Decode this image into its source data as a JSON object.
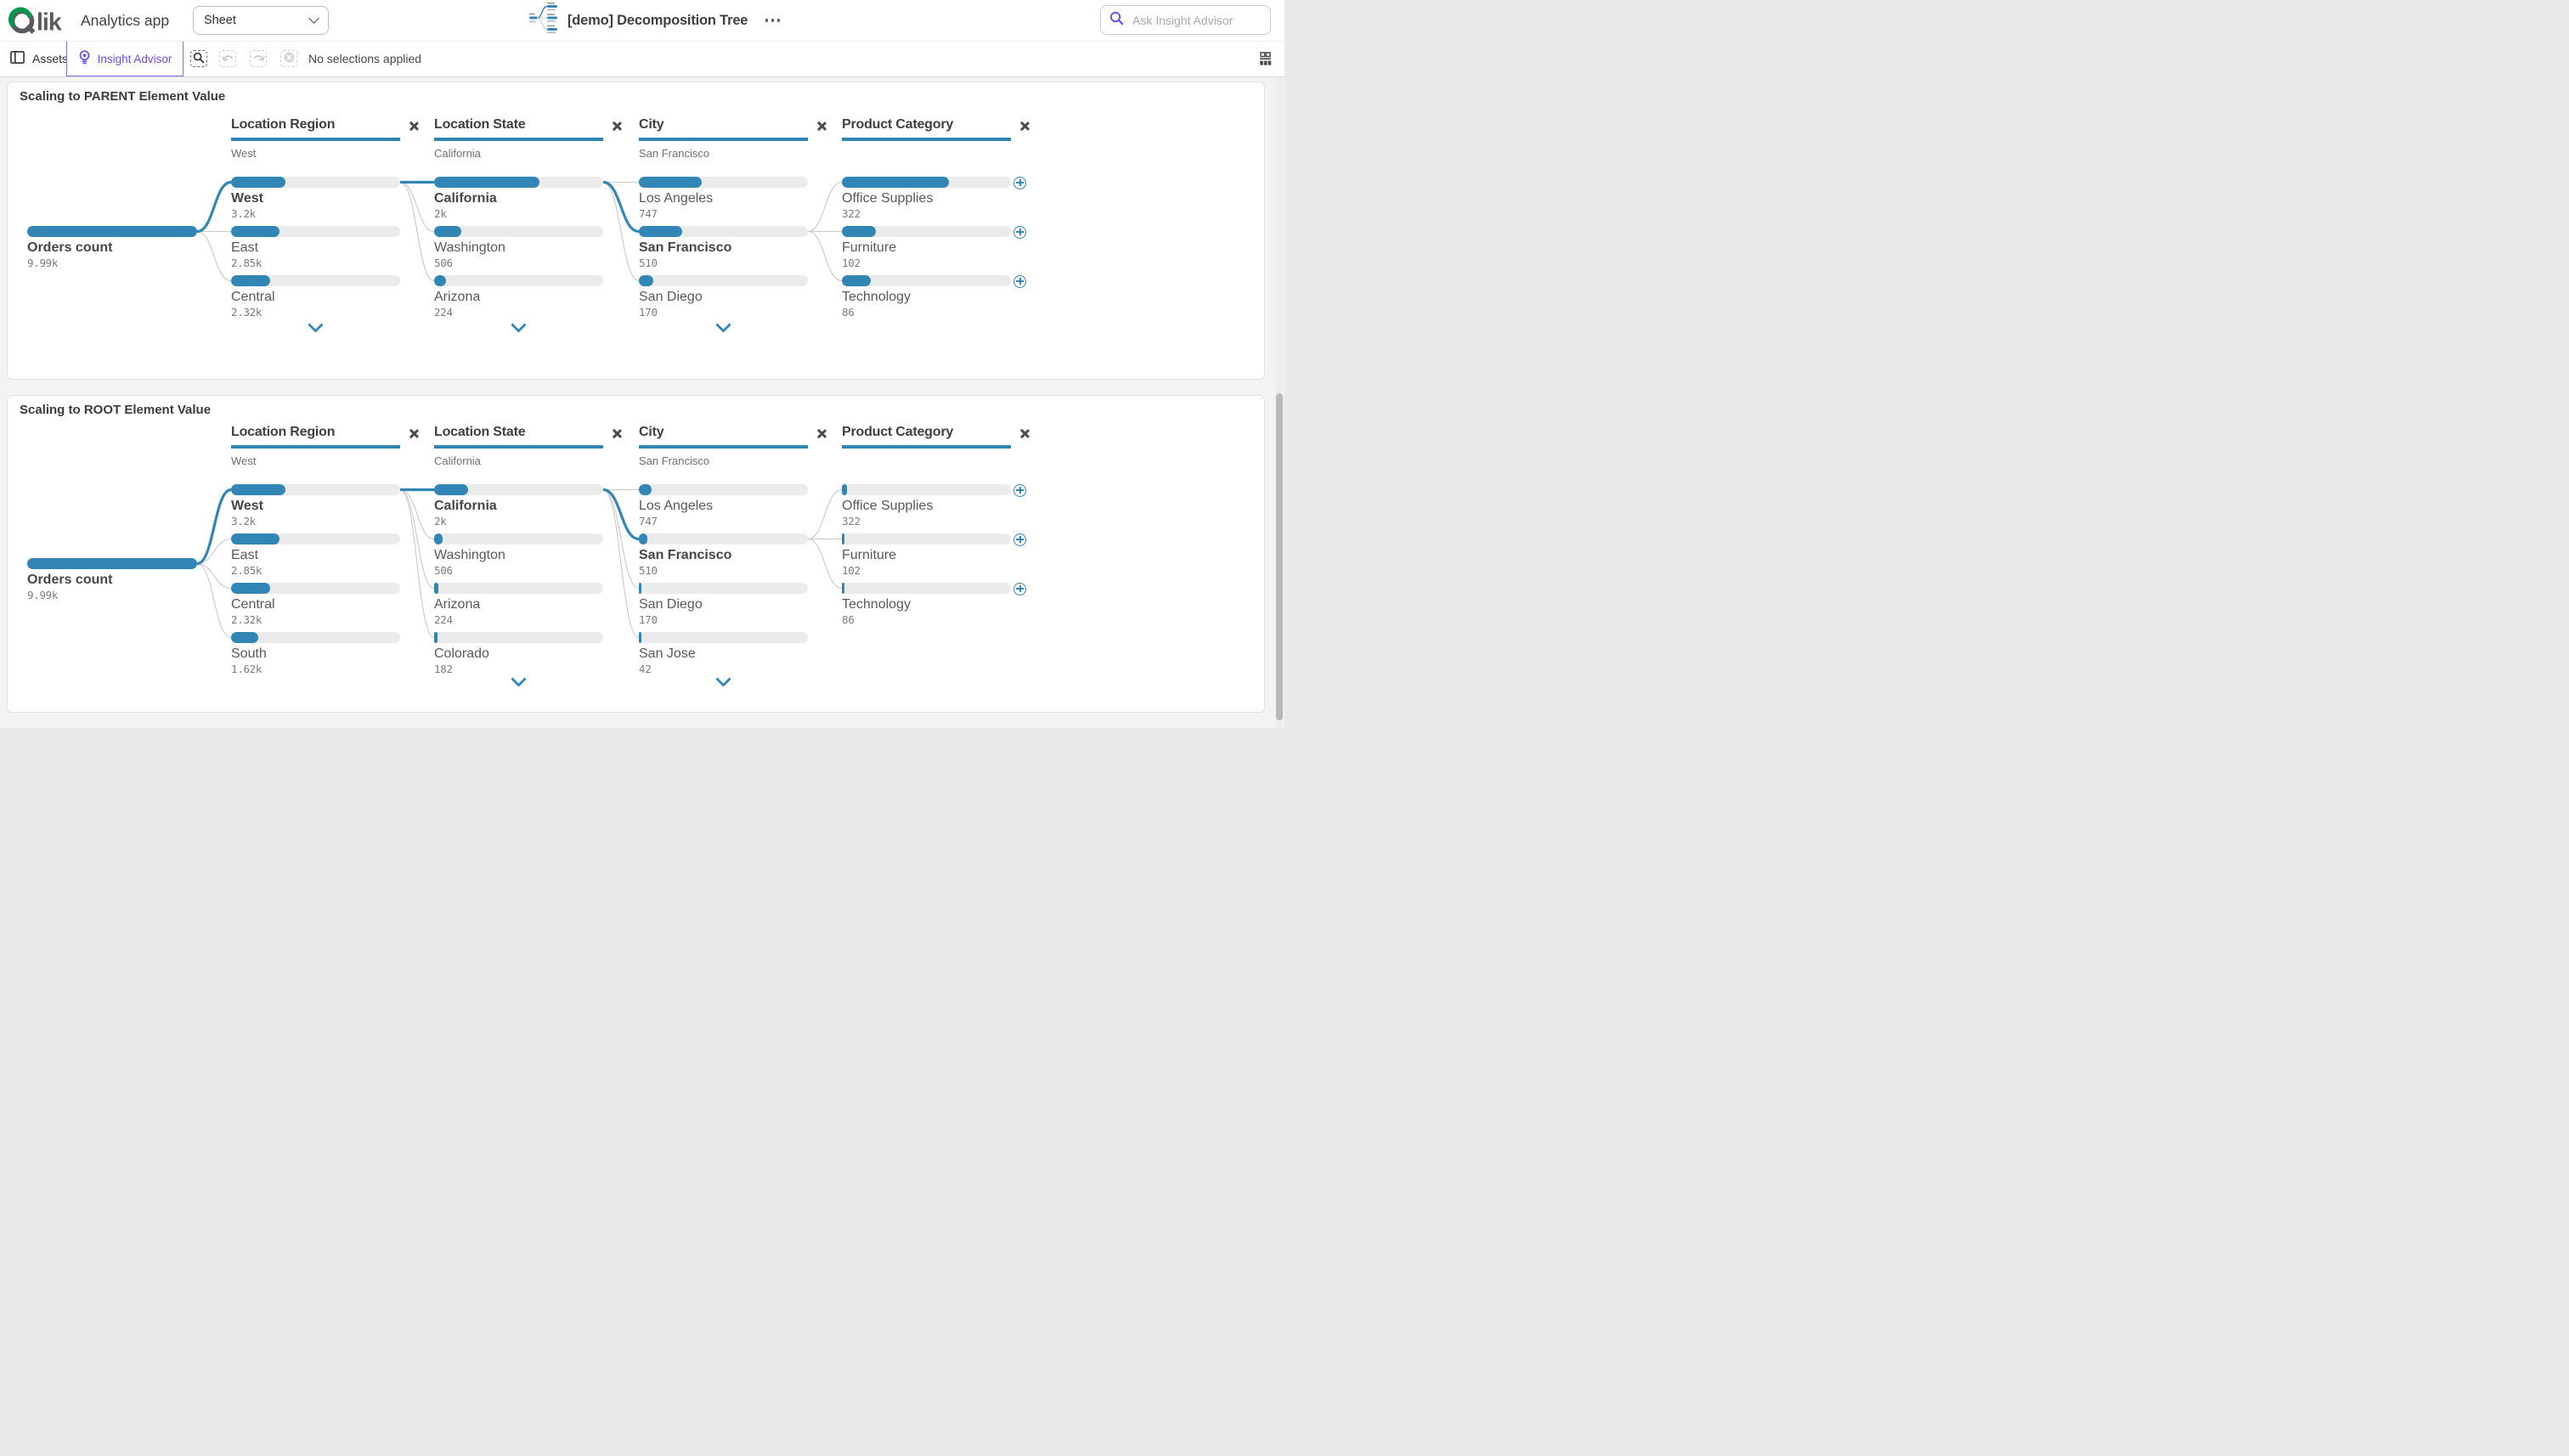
{
  "topbar": {
    "brand": "Qlik",
    "app_title": "Analytics app",
    "sheet_selector_label": "Sheet",
    "document_title": "[demo] Decomposition Tree",
    "search_placeholder": "Ask Insight Advisor"
  },
  "toolbar": {
    "assets_label": "Assets",
    "insight_advisor_label": "Insight Advisor",
    "selections_status": "No selections applied"
  },
  "colors": {
    "accent_blue": "#3186b5",
    "accent_purple": "#654ff0",
    "bar_track_gray": "#ebebeb",
    "connector_gray": "#c9c9c9",
    "qlik_green": "#00984a",
    "logo_gray": "#595b60"
  },
  "chart_data": [
    {
      "type": "decomposition_tree",
      "title": "Scaling to PARENT Element Value",
      "scaling": "parent",
      "measure": {
        "label": "Orders count",
        "display": "9.99k",
        "value": 9990
      },
      "columns": [
        {
          "header": "Location Region",
          "selected": "West",
          "has_more": true,
          "expandable": false,
          "nodes": [
            {
              "label": "West",
              "display": "3.2k",
              "value": 3200,
              "selected": true
            },
            {
              "label": "East",
              "display": "2.85k",
              "value": 2850,
              "selected": false
            },
            {
              "label": "Central",
              "display": "2.32k",
              "value": 2320,
              "selected": false
            }
          ]
        },
        {
          "header": "Location State",
          "selected": "California",
          "has_more": true,
          "expandable": false,
          "nodes": [
            {
              "label": "California",
              "display": "2k",
              "value": 2000,
              "selected": true
            },
            {
              "label": "Washington",
              "display": "506",
              "value": 506,
              "selected": false
            },
            {
              "label": "Arizona",
              "display": "224",
              "value": 224,
              "selected": false
            }
          ]
        },
        {
          "header": "City",
          "selected": "San Francisco",
          "has_more": true,
          "expandable": false,
          "nodes": [
            {
              "label": "Los Angeles",
              "display": "747",
              "value": 747,
              "selected": false
            },
            {
              "label": "San Francisco",
              "display": "510",
              "value": 510,
              "selected": true
            },
            {
              "label": "San Diego",
              "display": "170",
              "value": 170,
              "selected": false
            }
          ]
        },
        {
          "header": "Product Category",
          "selected": "",
          "has_more": false,
          "expandable": true,
          "nodes": [
            {
              "label": "Office Supplies",
              "display": "322",
              "value": 322,
              "selected": false
            },
            {
              "label": "Furniture",
              "display": "102",
              "value": 102,
              "selected": false
            },
            {
              "label": "Technology",
              "display": "86",
              "value": 86,
              "selected": false
            }
          ]
        }
      ]
    },
    {
      "type": "decomposition_tree",
      "title": "Scaling to ROOT Element Value",
      "scaling": "root",
      "measure": {
        "label": "Orders count",
        "display": "9.99k",
        "value": 9990
      },
      "columns": [
        {
          "header": "Location Region",
          "selected": "West",
          "has_more": false,
          "expandable": false,
          "nodes": [
            {
              "label": "West",
              "display": "3.2k",
              "value": 3200,
              "selected": true
            },
            {
              "label": "East",
              "display": "2.85k",
              "value": 2850,
              "selected": false
            },
            {
              "label": "Central",
              "display": "2.32k",
              "value": 2320,
              "selected": false
            },
            {
              "label": "South",
              "display": "1.62k",
              "value": 1620,
              "selected": false
            }
          ]
        },
        {
          "header": "Location State",
          "selected": "California",
          "has_more": true,
          "expandable": false,
          "nodes": [
            {
              "label": "California",
              "display": "2k",
              "value": 2000,
              "selected": true
            },
            {
              "label": "Washington",
              "display": "506",
              "value": 506,
              "selected": false
            },
            {
              "label": "Arizona",
              "display": "224",
              "value": 224,
              "selected": false
            },
            {
              "label": "Colorado",
              "display": "182",
              "value": 182,
              "selected": false
            }
          ]
        },
        {
          "header": "City",
          "selected": "San Francisco",
          "has_more": true,
          "expandable": false,
          "nodes": [
            {
              "label": "Los Angeles",
              "display": "747",
              "value": 747,
              "selected": false
            },
            {
              "label": "San Francisco",
              "display": "510",
              "value": 510,
              "selected": true
            },
            {
              "label": "San Diego",
              "display": "170",
              "value": 170,
              "selected": false
            },
            {
              "label": "San Jose",
              "display": "42",
              "value": 42,
              "selected": false
            }
          ]
        },
        {
          "header": "Product Category",
          "selected": "",
          "has_more": false,
          "expandable": true,
          "nodes": [
            {
              "label": "Office Supplies",
              "display": "322",
              "value": 322,
              "selected": false
            },
            {
              "label": "Furniture",
              "display": "102",
              "value": 102,
              "selected": false
            },
            {
              "label": "Technology",
              "display": "86",
              "value": 86,
              "selected": false
            }
          ]
        }
      ]
    }
  ]
}
